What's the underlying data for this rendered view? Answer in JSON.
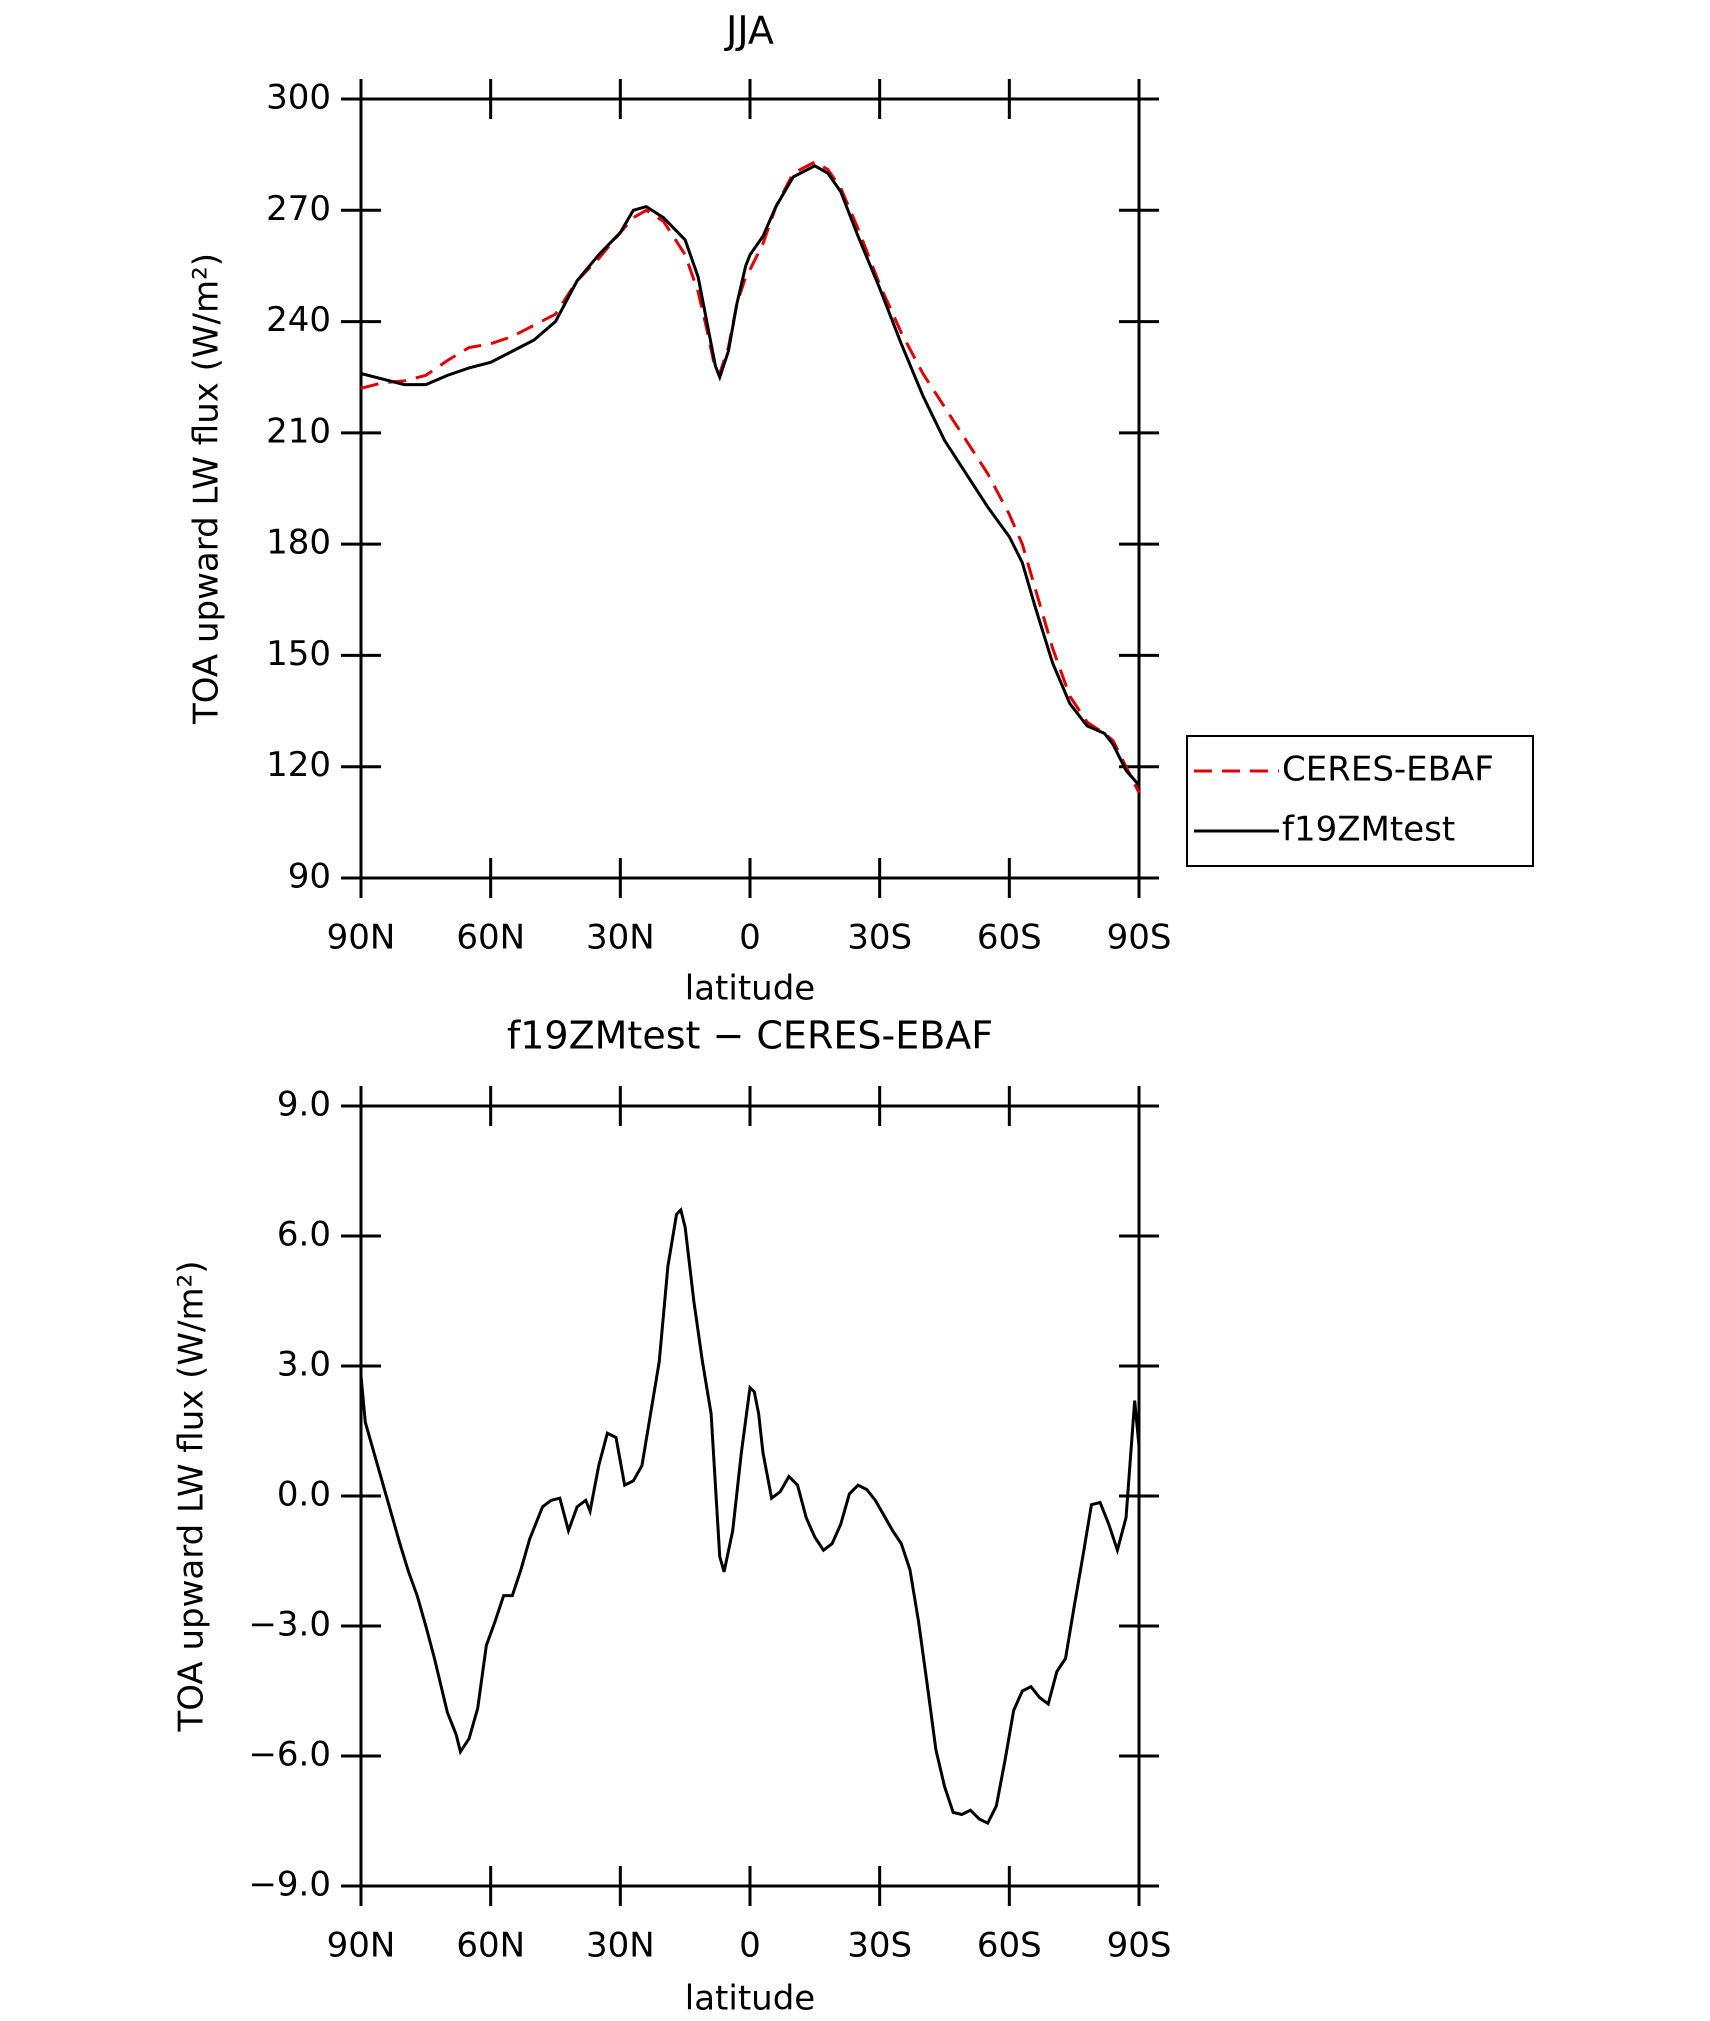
{
  "chart_data": [
    {
      "type": "line",
      "title": "JJA",
      "xlabel": "latitude",
      "ylabel": "TOA upward LW flux (W/m²)",
      "x": [
        90,
        85,
        80,
        75,
        70,
        65,
        60,
        55,
        50,
        45,
        40,
        35,
        30,
        27,
        24,
        20,
        15,
        12,
        10,
        8,
        7,
        5,
        3,
        1,
        0,
        -3,
        -6,
        -10,
        -15,
        -18,
        -21,
        -25,
        -30,
        -35,
        -40,
        -45,
        -50,
        -55,
        -60,
        -63,
        -66,
        -70,
        -74,
        -78,
        -82,
        -84,
        -87,
        -90
      ],
      "series": [
        {
          "name": "CERES-EBAF",
          "color": "#e00000",
          "dash": true,
          "values": [
            222,
            223.5,
            224,
            225.5,
            229.5,
            233,
            234,
            236,
            239,
            242,
            251,
            257,
            264,
            268,
            270,
            267,
            258,
            248,
            238,
            227,
            226,
            233,
            245,
            252,
            254,
            261,
            271,
            280,
            283,
            281,
            276,
            265,
            250,
            237,
            226,
            217,
            208,
            199,
            188,
            180,
            168,
            152,
            139,
            132,
            129,
            127,
            120,
            113
          ]
        },
        {
          "name": "f19ZMtest",
          "color": "#000000",
          "dash": false,
          "values": [
            226,
            224.5,
            223,
            223,
            225.5,
            227.5,
            229,
            232,
            235,
            240,
            251,
            258,
            264,
            270,
            271,
            268,
            262,
            252,
            240,
            228,
            225,
            232,
            245,
            255,
            258,
            263,
            271,
            279,
            282,
            280,
            275,
            263,
            249,
            234,
            220,
            208,
            199,
            190,
            182,
            175,
            163,
            148,
            137,
            131,
            129,
            126,
            119,
            115
          ]
        }
      ],
      "xlim": [
        90,
        -90
      ],
      "xticks": [
        {
          "value": 90,
          "label": "90N"
        },
        {
          "value": 60,
          "label": "60N"
        },
        {
          "value": 30,
          "label": "30N"
        },
        0,
        {
          "value": -30,
          "label": "30S"
        },
        {
          "value": -60,
          "label": "60S"
        },
        {
          "value": -90,
          "label": "90S"
        }
      ],
      "ylim": [
        90,
        300
      ],
      "yticks": [
        90,
        120,
        150,
        180,
        210,
        240,
        270,
        300
      ],
      "legend": "right"
    },
    {
      "type": "line",
      "title": "f19ZMtest − CERES-EBAF",
      "xlabel": "latitude",
      "ylabel": "TOA upward LW flux (W/m²)",
      "x": [
        90,
        89,
        87,
        84,
        81,
        79,
        77,
        75,
        73,
        70,
        68,
        67,
        65,
        63,
        61,
        59,
        57,
        55,
        53,
        51,
        48,
        46,
        44,
        42,
        40,
        38,
        37,
        35,
        33,
        31,
        29,
        27,
        25,
        23,
        21,
        19,
        17,
        16,
        15,
        13,
        11,
        9,
        7,
        6,
        4,
        2,
        0,
        -1,
        -2,
        -3,
        -5,
        -7,
        -9,
        -11,
        -13,
        -15,
        -17,
        -19,
        -21,
        -23,
        -25,
        -27,
        -29,
        -31,
        -33,
        -35,
        -37,
        -39,
        -41,
        -43,
        -45,
        -47,
        -49,
        -51,
        -53,
        -55,
        -57,
        -59,
        -61,
        -63,
        -65,
        -67,
        -69,
        -71,
        -73,
        -75,
        -77,
        -79,
        -81,
        -83,
        -85,
        -87,
        -89,
        -90
      ],
      "series": [
        {
          "color": "#000000",
          "dash": false,
          "values": [
            2.77,
            1.7,
            1.0,
            -0.05,
            -1.1,
            -1.75,
            -2.3,
            -3.0,
            -3.75,
            -5.0,
            -5.5,
            -5.9,
            -5.6,
            -4.9,
            -3.45,
            -2.9,
            -2.3,
            -2.3,
            -1.7,
            -1.0,
            -0.25,
            -0.1,
            -0.05,
            -0.8,
            -0.25,
            -0.1,
            -0.35,
            0.7,
            1.45,
            1.35,
            0.25,
            0.35,
            0.7,
            1.9,
            3.1,
            5.3,
            6.5,
            6.6,
            6.2,
            4.5,
            3.1,
            1.9,
            -1.4,
            -1.75,
            -0.8,
            1.0,
            2.5,
            2.4,
            1.9,
            1.0,
            -0.05,
            0.1,
            0.45,
            0.25,
            -0.5,
            -0.95,
            -1.25,
            -1.1,
            -0.65,
            0.05,
            0.25,
            0.15,
            -0.1,
            -0.45,
            -0.8,
            -1.1,
            -1.7,
            -2.9,
            -4.35,
            -5.85,
            -6.7,
            -7.3,
            -7.35,
            -7.25,
            -7.45,
            -7.55,
            -7.15,
            -6.1,
            -4.95,
            -4.5,
            -4.4,
            -4.65,
            -4.8,
            -4.05,
            -3.75,
            -2.55,
            -1.4,
            -0.2,
            -0.15,
            -0.65,
            -1.25,
            -0.5,
            2.2,
            1.15
          ]
        }
      ],
      "xlim": [
        90,
        -90
      ],
      "xticks": [
        {
          "value": 90,
          "label": "90N"
        },
        {
          "value": 60,
          "label": "60N"
        },
        {
          "value": 30,
          "label": "30N"
        },
        0,
        {
          "value": -30,
          "label": "30S"
        },
        {
          "value": -60,
          "label": "60S"
        },
        {
          "value": -90,
          "label": "90S"
        }
      ],
      "ylim": [
        -9,
        9
      ],
      "yticks": [
        {
          "value": -9,
          "label": "−9.0"
        },
        {
          "value": -6,
          "label": "−6.0"
        },
        {
          "value": -3,
          "label": "−3.0"
        },
        {
          "value": 0,
          "label": "0.0"
        },
        {
          "value": 3,
          "label": "3.0"
        },
        {
          "value": 6,
          "label": "6.0"
        },
        {
          "value": 9,
          "label": "9.0"
        }
      ]
    }
  ]
}
